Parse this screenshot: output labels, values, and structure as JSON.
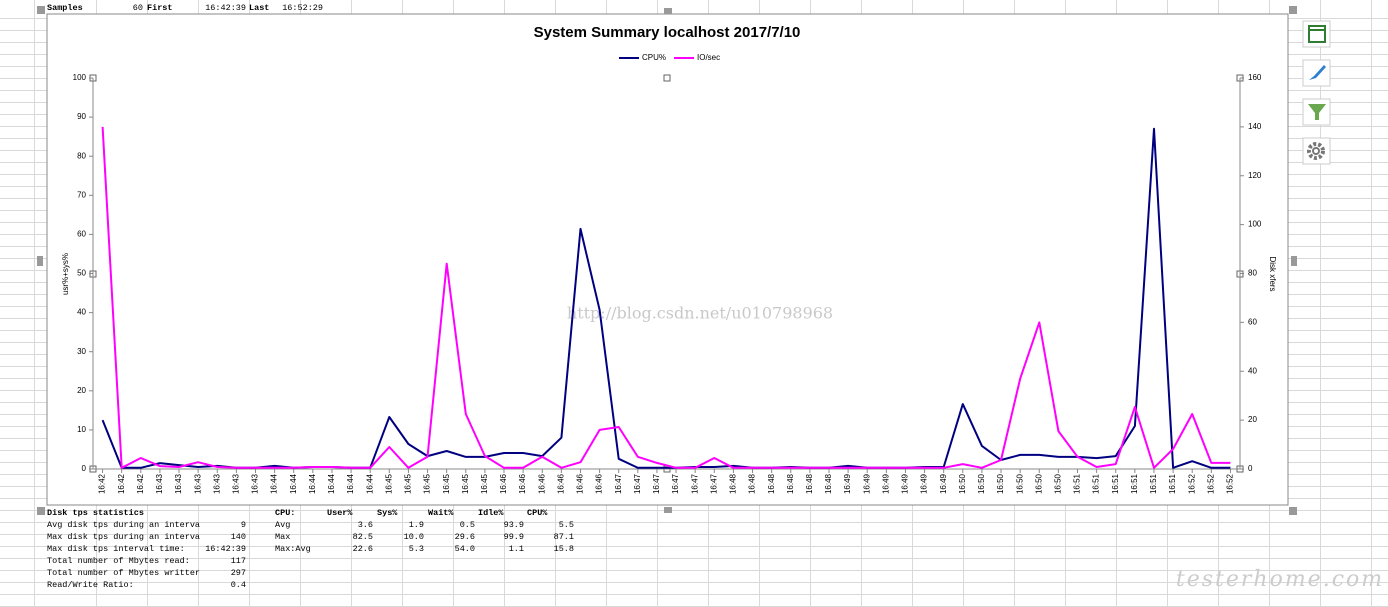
{
  "chart_data": {
    "type": "line",
    "title": "System Summary localhost  2017/7/10",
    "y_label": "usr%+sys%",
    "y2_label": "Disk xfers",
    "categories": [
      "16:42",
      "16:42",
      "16:42",
      "16:43",
      "16:43",
      "16:43",
      "16:43",
      "16:43",
      "16:43",
      "16:44",
      "16:44",
      "16:44",
      "16:44",
      "16:44",
      "16:44",
      "16:45",
      "16:45",
      "16:45",
      "16:45",
      "16:45",
      "16:45",
      "16:46",
      "16:46",
      "16:46",
      "16:46",
      "16:46",
      "16:46",
      "16:47",
      "16:47",
      "16:47",
      "16:47",
      "16:47",
      "16:47",
      "16:48",
      "16:48",
      "16:48",
      "16:48",
      "16:48",
      "16:48",
      "16:49",
      "16:49",
      "16:49",
      "16:49",
      "16:49",
      "16:49",
      "16:50",
      "16:50",
      "16:50",
      "16:50",
      "16:50",
      "16:50",
      "16:51",
      "16:51",
      "16:51",
      "16:51",
      "16:51",
      "16:51",
      "16:52",
      "16:52",
      "16:52"
    ],
    "series": [
      {
        "name": "CPU%",
        "color": "#000080",
        "axis": "y",
        "values": [
          12.5,
          0.3,
          0.3,
          1.5,
          1,
          0.5,
          0.8,
          0.3,
          0.3,
          0.8,
          0.3,
          0.5,
          0.5,
          0.3,
          0.3,
          13.3,
          6.4,
          3.3,
          4.6,
          3.1,
          3.1,
          4.1,
          4.1,
          3.3,
          8,
          61.4,
          40.7,
          2.6,
          0.3,
          0.3,
          0.3,
          0.5,
          0.5,
          0.8,
          0.3,
          0.3,
          0.5,
          0.3,
          0.3,
          0.8,
          0.3,
          0.3,
          0.3,
          0.5,
          0.5,
          16.6,
          5.9,
          2.3,
          3.6,
          3.6,
          3.1,
          3.1,
          2.8,
          3.3,
          11,
          87,
          0.3,
          2,
          0.3,
          0.3
        ]
      },
      {
        "name": "IO/sec",
        "color": "#ff00ff",
        "axis": "y2",
        "values": [
          140,
          0.5,
          4.5,
          1.2,
          0.8,
          2.8,
          0.8,
          0.5,
          0.5,
          0.5,
          0.5,
          0.8,
          0.8,
          0.5,
          0.5,
          9,
          0.5,
          5,
          84,
          22.5,
          5.3,
          0.5,
          0.5,
          5,
          0.5,
          2.8,
          16,
          17.2,
          5,
          2.5,
          0.5,
          0.5,
          4.5,
          0.5,
          0.5,
          0.5,
          0.5,
          0.5,
          0.5,
          0.5,
          0.5,
          0.5,
          0.5,
          0.5,
          0.5,
          2,
          0.5,
          3.7,
          37,
          60,
          15.5,
          5,
          0.8,
          2,
          25.4,
          0.5,
          8.2,
          22.5,
          2.5,
          2.5
        ]
      }
    ],
    "ylim": [
      0,
      100
    ],
    "yticks": [
      0,
      10,
      20,
      30,
      40,
      50,
      60,
      70,
      80,
      90,
      100
    ],
    "y2lim": [
      0,
      160
    ],
    "y2ticks": [
      0,
      20,
      40,
      60,
      80,
      100,
      120,
      140,
      160
    ],
    "grid": false,
    "legend": "top"
  },
  "sheet": {
    "header_row": [
      "Samples",
      "60",
      "First",
      "16:42:39",
      "Last",
      "16:52:29"
    ],
    "disk_stats": {
      "title": "Disk tps statistics",
      "rows": [
        [
          "Avg disk tps during an interva",
          "9"
        ],
        [
          "Max disk tps during an interva",
          "140"
        ],
        [
          "Max disk tps interval time:",
          "16:42:39"
        ],
        [
          "Total number of Mbytes read:",
          "117"
        ],
        [
          "Total number of Mbytes writter",
          "297"
        ],
        [
          "Read/Write Ratio:",
          "0.4"
        ]
      ]
    },
    "cpu_table": {
      "header": [
        "CPU:",
        "User%",
        "Sys%",
        "Wait%",
        "Idle%",
        "CPU%"
      ],
      "rows": [
        [
          "Avg",
          "3.6",
          "1.9",
          "0.5",
          "93.9",
          "5.5"
        ],
        [
          "Max",
          "82.5",
          "10.0",
          "29.6",
          "99.9",
          "87.1"
        ],
        [
          "Max:Avg",
          "22.6",
          "5.3",
          "54.0",
          "1.1",
          "15.8"
        ]
      ]
    }
  },
  "watermarks": [
    "http://blog.csdn.net/u010798968",
    "testerhome.com"
  ]
}
